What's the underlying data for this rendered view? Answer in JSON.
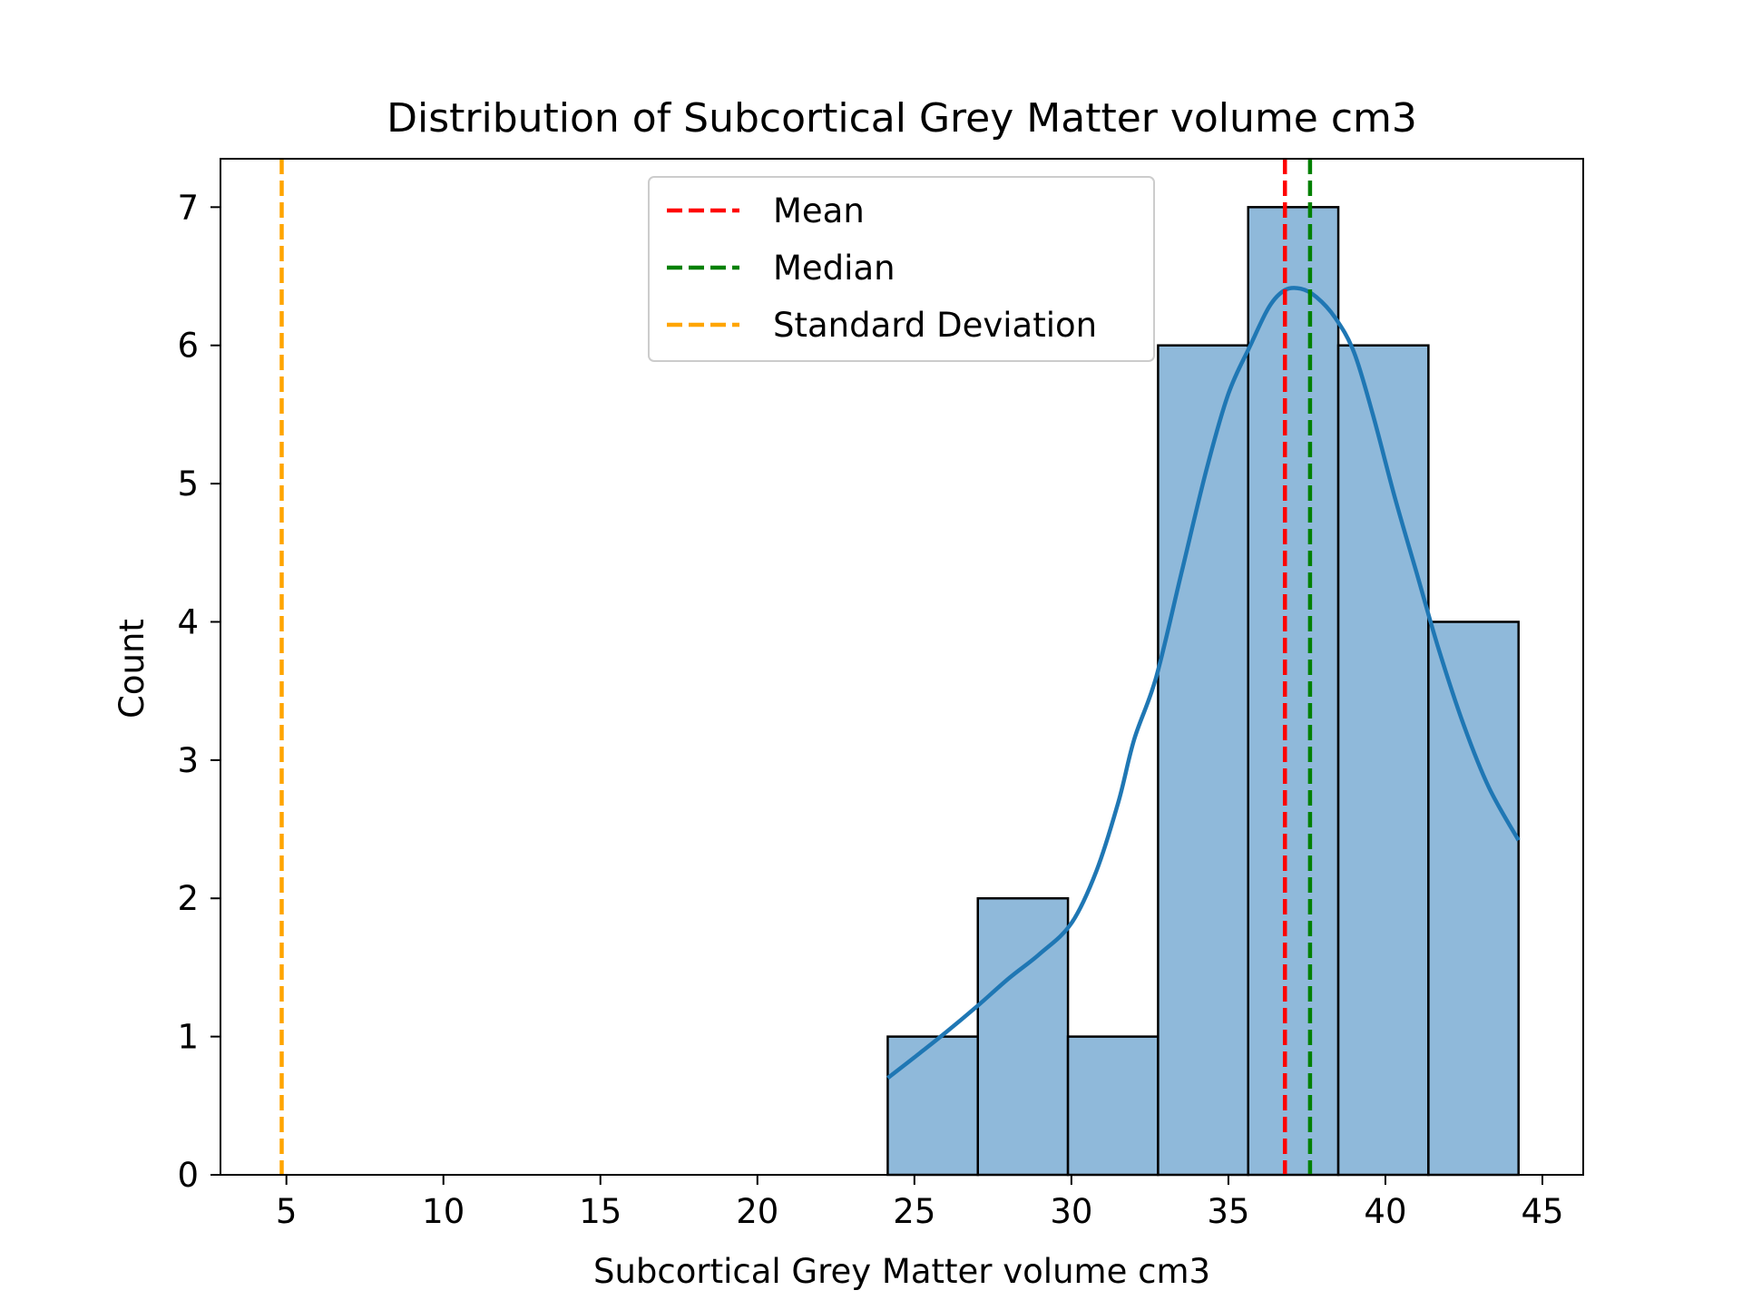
{
  "chart_data": {
    "type": "bar",
    "subtype": "histogram-with-kde",
    "title": "Distribution of Subcortical Grey Matter volume cm3",
    "xlabel": "Subcortical Grey Matter volume cm3",
    "ylabel": "Count",
    "xlim": [
      2.9,
      46.3
    ],
    "ylim": [
      0,
      7.35
    ],
    "xticks": [
      5,
      10,
      15,
      20,
      25,
      30,
      35,
      40,
      45
    ],
    "yticks": [
      0,
      1,
      2,
      3,
      4,
      5,
      6,
      7
    ],
    "bins": [
      {
        "start": 24.15,
        "end": 27.02,
        "count": 1
      },
      {
        "start": 27.02,
        "end": 29.89,
        "count": 2
      },
      {
        "start": 29.89,
        "end": 32.76,
        "count": 1
      },
      {
        "start": 32.76,
        "end": 35.63,
        "count": 6
      },
      {
        "start": 35.63,
        "end": 38.5,
        "count": 7
      },
      {
        "start": 38.5,
        "end": 41.37,
        "count": 6
      },
      {
        "start": 41.37,
        "end": 44.24,
        "count": 4
      }
    ],
    "kde": {
      "x": [
        24.15,
        25.0,
        26.0,
        27.0,
        28.0,
        29.0,
        30.0,
        30.8,
        31.5,
        32.0,
        32.7,
        33.5,
        34.3,
        35.0,
        35.7,
        36.3,
        36.8,
        37.3,
        37.8,
        38.4,
        39.0,
        39.6,
        40.3,
        41.0,
        41.7,
        42.5,
        43.3,
        44.24
      ],
      "y": [
        0.7,
        0.85,
        1.03,
        1.22,
        1.42,
        1.6,
        1.82,
        2.2,
        2.7,
        3.15,
        3.6,
        4.35,
        5.1,
        5.65,
        6.0,
        6.28,
        6.4,
        6.41,
        6.35,
        6.2,
        5.95,
        5.5,
        4.9,
        4.35,
        3.8,
        3.25,
        2.8,
        2.42
      ]
    },
    "vlines": [
      {
        "name": "Mean",
        "x": 36.8,
        "color": "#ff0000"
      },
      {
        "name": "Median",
        "x": 37.6,
        "color": "#008000"
      },
      {
        "name": "Standard Deviation",
        "x": 4.85,
        "color": "#ffa500"
      }
    ],
    "bar_fill": "#8fb9da",
    "bar_edge": "#000000",
    "kde_color": "#1f77b4",
    "legend": {
      "placement": "upper-center",
      "entries": [
        "Mean",
        "Median",
        "Standard Deviation"
      ]
    },
    "grid": false
  }
}
